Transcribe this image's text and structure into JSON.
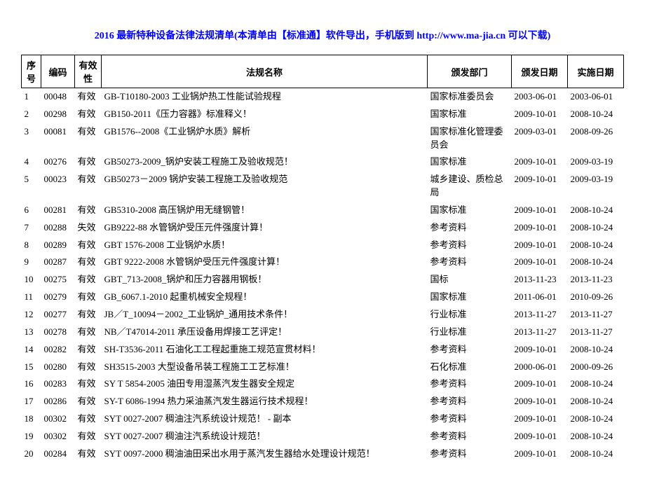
{
  "title": "2016 最新特种设备法律法规清单(本清单由【标准通】软件导出，手机版到 http://www.ma-jia.cn 可以下载)",
  "columns": {
    "seq": "序号",
    "code": "编码",
    "valid": "有效性",
    "name": "法规名称",
    "dept": "颁发部门",
    "pub": "颁发日期",
    "imp": "实施日期"
  },
  "rows": [
    {
      "seq": "1",
      "code": "00048",
      "valid": "有效",
      "name": "GB-T10180-2003 工业锅炉热工性能试验规程",
      "dept": "国家标准委员会",
      "pub": "2003-06-01",
      "imp": "2003-06-01"
    },
    {
      "seq": "2",
      "code": "00298",
      "valid": "有效",
      "name": "GB150-2011《压力容器》标准释义！",
      "dept": "国家标准",
      "pub": "2009-10-01",
      "imp": "2008-10-24"
    },
    {
      "seq": "3",
      "code": "00081",
      "valid": "有效",
      "name": "GB1576--2008《工业锅炉水质》解析",
      "dept": "国家标准化管理委员会",
      "pub": "2009-03-01",
      "imp": "2008-09-26"
    },
    {
      "seq": "4",
      "code": "00276",
      "valid": "有效",
      "name": "GB50273-2009_锅炉安装工程施工及验收规范！",
      "dept": "国家标准",
      "pub": "2009-10-01",
      "imp": "2009-03-19"
    },
    {
      "seq": "5",
      "code": "00023",
      "valid": "有效",
      "name": "GB50273－2009 锅炉安装工程施工及验收规范",
      "dept": "城乡建设、质检总局",
      "pub": "2009-10-01",
      "imp": "2009-03-19"
    },
    {
      "seq": "6",
      "code": "00281",
      "valid": "有效",
      "name": "GB5310-2008 高压锅炉用无缝钢管！",
      "dept": "国家标准",
      "pub": "2009-10-01",
      "imp": "2008-10-24"
    },
    {
      "seq": "7",
      "code": "00288",
      "valid": "失效",
      "name": "GB9222-88 水管锅炉受压元件强度计算！",
      "dept": "参考资料",
      "pub": "2009-10-01",
      "imp": "2008-10-24"
    },
    {
      "seq": "8",
      "code": "00289",
      "valid": "有效",
      "name": "GBT 1576-2008 工业锅炉水质！",
      "dept": "参考资料",
      "pub": "2009-10-01",
      "imp": "2008-10-24"
    },
    {
      "seq": "9",
      "code": "00287",
      "valid": "有效",
      "name": "GBT 9222-2008 水管锅炉受压元件强度计算！",
      "dept": "参考资料",
      "pub": "2009-10-01",
      "imp": "2008-10-24"
    },
    {
      "seq": "10",
      "code": "00275",
      "valid": "有效",
      "name": "GBT_713-2008_锅炉和压力容器用钢板！",
      "dept": "国标",
      "pub": "2013-11-23",
      "imp": "2013-11-23"
    },
    {
      "seq": "11",
      "code": "00279",
      "valid": "有效",
      "name": "GB_6067.1-2010 起重机械安全规程！",
      "dept": "国家标准",
      "pub": "2011-06-01",
      "imp": "2010-09-26"
    },
    {
      "seq": "12",
      "code": "00277",
      "valid": "有效",
      "name": "JB／T_10094－2002_工业锅炉_通用技术条件！",
      "dept": "行业标准",
      "pub": "2013-11-27",
      "imp": "2013-11-27"
    },
    {
      "seq": "13",
      "code": "00278",
      "valid": "有效",
      "name": "NB／T47014-2011 承压设备用焊接工艺评定！",
      "dept": "行业标准",
      "pub": "2013-11-27",
      "imp": "2013-11-27"
    },
    {
      "seq": "14",
      "code": "00282",
      "valid": "有效",
      "name": "SH-T3536-2011 石油化工工程起重施工规范宣贯材料！",
      "dept": "参考资料",
      "pub": "2009-10-01",
      "imp": "2008-10-24"
    },
    {
      "seq": "15",
      "code": "00280",
      "valid": "有效",
      "name": "SH3515-2003 大型设备吊装工程施工工艺标准！",
      "dept": "石化标准",
      "pub": "2000-06-01",
      "imp": "2000-09-26"
    },
    {
      "seq": "16",
      "code": "00283",
      "valid": "有效",
      "name": "SY T 5854-2005 油田专用湿蒸汽发生器安全规定",
      "dept": "参考资料",
      "pub": "2009-10-01",
      "imp": "2008-10-24"
    },
    {
      "seq": "17",
      "code": "00286",
      "valid": "有效",
      "name": "SY-T 6086-1994 热力采油蒸汽发生器运行技术规程！",
      "dept": "参考资料",
      "pub": "2009-10-01",
      "imp": "2008-10-24"
    },
    {
      "seq": "18",
      "code": "00302",
      "valid": "有效",
      "name": "SYT 0027-2007 稠油注汽系统设计规范！ - 副本",
      "dept": "参考资料",
      "pub": "2009-10-01",
      "imp": "2008-10-24"
    },
    {
      "seq": "19",
      "code": "00302",
      "valid": "有效",
      "name": "SYT 0027-2007 稠油注汽系统设计规范！",
      "dept": "参考资料",
      "pub": "2009-10-01",
      "imp": "2008-10-24"
    },
    {
      "seq": "20",
      "code": "00284",
      "valid": "有效",
      "name": "SYT 0097-2000 稠油油田采出水用于蒸汽发生器给水处理设计规范！",
      "dept": "参考资料",
      "pub": "2009-10-01",
      "imp": "2008-10-24"
    }
  ]
}
